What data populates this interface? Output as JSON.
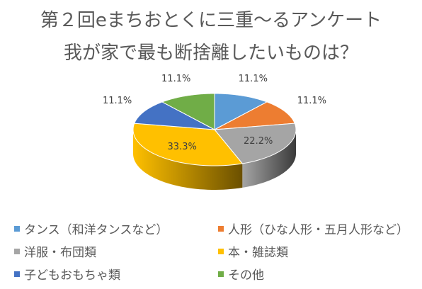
{
  "chart_data": {
    "type": "pie",
    "title": "第２回eまちおとくに三重〜るアンケート",
    "subtitle": "我が家で最も断捨離したいものは？",
    "slices": [
      {
        "label": "タンス（和洋タンスなど）",
        "value": 11.1,
        "data_label": "11.1%",
        "color": "#5B9BD5",
        "side": "#3f77ad"
      },
      {
        "label": "人形（ひな人形・五月人形など）",
        "value": 11.1,
        "data_label": "11.1%",
        "color": "#ED7D31",
        "side": "#b35a1e"
      },
      {
        "label": "洋服・布団類",
        "value": 22.2,
        "data_label": "22.2%",
        "color": "#A5A5A5",
        "side": "#3a3a3a"
      },
      {
        "label": "本・雑誌類",
        "value": 33.3,
        "data_label": "33.3%",
        "color": "#FFC000",
        "side": "#6b5000"
      },
      {
        "label": "子どもおもちゃ類",
        "value": 11.1,
        "data_label": "11.1%",
        "color": "#4472C4",
        "side": "#2e5091"
      },
      {
        "label": "その他",
        "value": 11.1,
        "data_label": "11.1%",
        "color": "#70AD47",
        "side": "#4e7d31"
      }
    ],
    "legend_position": "bottom",
    "start_angle": 0
  }
}
